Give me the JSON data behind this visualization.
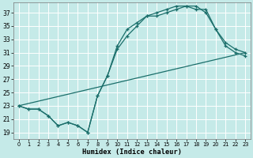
{
  "title": "",
  "xlabel": "Humidex (Indice chaleur)",
  "ylabel": "",
  "bg_color": "#c5eae8",
  "grid_color": "#ffffff",
  "line_color": "#1a6e6a",
  "xlim": [
    -0.5,
    23.5
  ],
  "ylim": [
    18,
    38.5
  ],
  "yticks": [
    19,
    21,
    23,
    25,
    27,
    29,
    31,
    33,
    35,
    37
  ],
  "xticks": [
    0,
    1,
    2,
    3,
    4,
    5,
    6,
    7,
    8,
    9,
    10,
    11,
    12,
    13,
    14,
    15,
    16,
    17,
    18,
    19,
    20,
    21,
    22,
    23
  ],
  "line1_x": [
    0,
    1,
    2,
    3,
    4,
    5,
    6,
    7,
    8,
    9,
    10,
    11,
    12,
    13,
    14,
    15,
    16,
    17,
    18,
    19,
    20,
    21,
    22,
    23
  ],
  "line1_y": [
    23,
    22.5,
    22.5,
    21.5,
    20.0,
    20.5,
    20.0,
    19.0,
    24.5,
    27.5,
    31.5,
    33.5,
    35.0,
    36.5,
    36.5,
    37.0,
    37.5,
    38.0,
    37.5,
    37.5,
    34.5,
    32.5,
    31.5,
    31.0
  ],
  "line2_x": [
    0,
    1,
    2,
    3,
    4,
    5,
    6,
    7,
    8,
    9,
    10,
    11,
    12,
    13,
    14,
    15,
    16,
    17,
    18,
    19,
    20,
    21,
    22,
    23
  ],
  "line2_y": [
    23,
    22.5,
    22.5,
    21.5,
    20.0,
    20.5,
    20.0,
    19.0,
    24.5,
    27.5,
    32.0,
    34.5,
    35.5,
    36.5,
    37.0,
    37.5,
    38.0,
    38.0,
    38.0,
    37.0,
    34.5,
    32.0,
    31.0,
    30.5
  ],
  "line3_x": [
    0,
    23
  ],
  "line3_y": [
    23,
    31
  ]
}
